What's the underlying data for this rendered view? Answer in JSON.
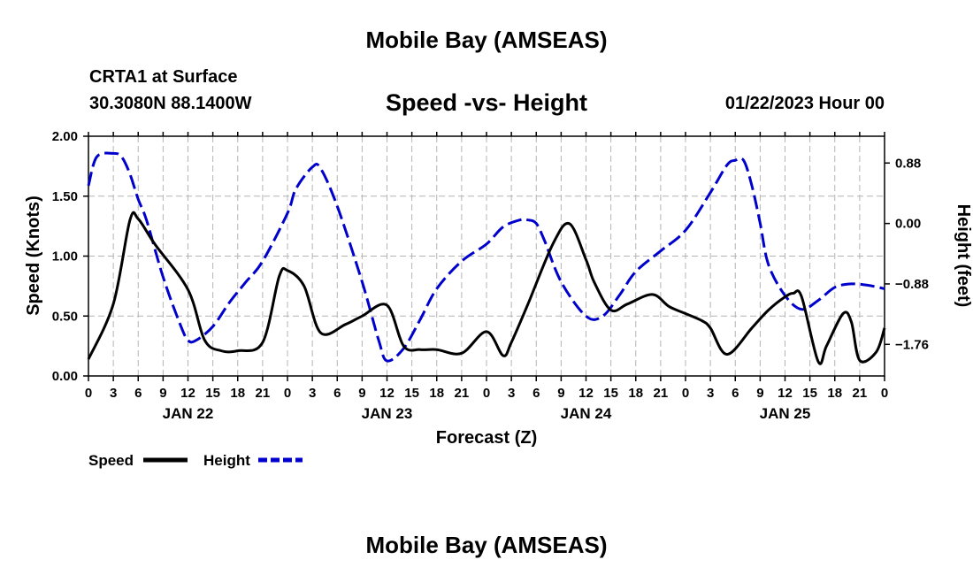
{
  "header": {
    "title": "Mobile Bay (AMSEAS)",
    "station": "CRTA1 at Surface",
    "coords": "30.3080N  88.1400W",
    "datetime": "01/22/2023 Hour 00"
  },
  "footer": {
    "title": "Mobile Bay (AMSEAS)"
  },
  "chart_data": {
    "type": "line",
    "title": "Speed -vs- Height",
    "xlabel": "Forecast (Z)",
    "ylabel": "Speed (Knots)",
    "y2label": "Height (feet)",
    "xlim": [
      0,
      96
    ],
    "ylim": [
      0,
      2
    ],
    "y2lim": [
      -2.22,
      1.27
    ],
    "grid": true,
    "legend_position": "bottom-left",
    "x_ticks": [
      0,
      3,
      6,
      9,
      12,
      15,
      18,
      21,
      24,
      27,
      30,
      33,
      36,
      39,
      42,
      45,
      48,
      51,
      54,
      57,
      60,
      63,
      66,
      69,
      72,
      75,
      78,
      81,
      84,
      87,
      90,
      93,
      96
    ],
    "x_tick_labels": [
      "0",
      "3",
      "6",
      "9",
      "12",
      "15",
      "18",
      "21",
      "0",
      "3",
      "6",
      "9",
      "12",
      "15",
      "18",
      "21",
      "0",
      "3",
      "6",
      "9",
      "12",
      "15",
      "18",
      "21",
      "0",
      "3",
      "6",
      "9",
      "12",
      "15",
      "18",
      "21",
      "0"
    ],
    "day_labels": [
      {
        "x": 12,
        "label": "JAN 22"
      },
      {
        "x": 36,
        "label": "JAN 23"
      },
      {
        "x": 60,
        "label": "JAN 24"
      },
      {
        "x": 84,
        "label": "JAN 25"
      }
    ],
    "y_ticks": [
      0,
      0.5,
      1,
      1.5,
      2
    ],
    "y_tick_labels": [
      "0.00",
      "0.50",
      "1.00",
      "1.50",
      "2.00"
    ],
    "y2_ticks": [
      0.88,
      0,
      -0.88,
      -1.76
    ],
    "y2_tick_labels": [
      "0.88",
      "0.00",
      "−0.88",
      "−1.76"
    ],
    "series": [
      {
        "name": "Speed",
        "axis": "left",
        "color": "#000000",
        "dash": "solid",
        "x": [
          0,
          3,
          5,
          6,
          8,
          12,
          14,
          16,
          18,
          21,
          23,
          24,
          26,
          28,
          31,
          33,
          36,
          38,
          40,
          42,
          45,
          48,
          50,
          51,
          53,
          56,
          58,
          60,
          61,
          63,
          65,
          68,
          70,
          72,
          74,
          75,
          77,
          80,
          82,
          84,
          85,
          86,
          88,
          89,
          91,
          92,
          93,
          95,
          96
        ],
        "values": [
          0.14,
          0.6,
          1.3,
          1.31,
          1.1,
          0.72,
          0.3,
          0.21,
          0.21,
          0.28,
          0.83,
          0.88,
          0.75,
          0.36,
          0.43,
          0.5,
          0.59,
          0.25,
          0.22,
          0.22,
          0.19,
          0.37,
          0.17,
          0.28,
          0.6,
          1.1,
          1.27,
          0.97,
          0.78,
          0.55,
          0.6,
          0.68,
          0.58,
          0.52,
          0.46,
          0.4,
          0.18,
          0.4,
          0.55,
          0.66,
          0.69,
          0.66,
          0.12,
          0.25,
          0.52,
          0.45,
          0.13,
          0.2,
          0.4
        ]
      },
      {
        "name": "Height",
        "axis": "right",
        "color": "#0000cc",
        "dash": "dashed",
        "x": [
          0,
          1,
          3,
          4,
          5,
          6,
          7,
          9,
          11,
          12,
          13,
          15,
          17,
          19,
          21,
          24,
          25,
          27,
          28,
          30,
          33,
          35,
          36,
          38,
          40,
          42,
          45,
          48,
          50,
          52,
          53,
          54,
          55,
          57,
          60,
          62,
          64,
          66,
          69,
          72,
          75,
          77,
          78,
          79,
          80,
          81,
          82,
          84,
          86,
          88,
          90,
          92,
          94,
          96
        ],
        "values": [
          0.55,
          0.97,
          1.02,
          0.97,
          0.72,
          0.35,
          0.05,
          -0.78,
          -1.45,
          -1.7,
          -1.7,
          -1.5,
          -1.15,
          -0.85,
          -0.55,
          0.15,
          0.5,
          0.82,
          0.8,
          0.25,
          -0.85,
          -1.7,
          -2.0,
          -1.82,
          -1.4,
          -0.95,
          -0.55,
          -0.3,
          -0.05,
          0.05,
          0.05,
          0.0,
          -0.25,
          -0.85,
          -1.35,
          -1.35,
          -1.05,
          -0.7,
          -0.4,
          -0.1,
          0.45,
          0.85,
          0.92,
          0.92,
          0.55,
          0.0,
          -0.6,
          -1.05,
          -1.25,
          -1.12,
          -0.93,
          -0.88,
          -0.9,
          -0.95
        ]
      }
    ]
  }
}
